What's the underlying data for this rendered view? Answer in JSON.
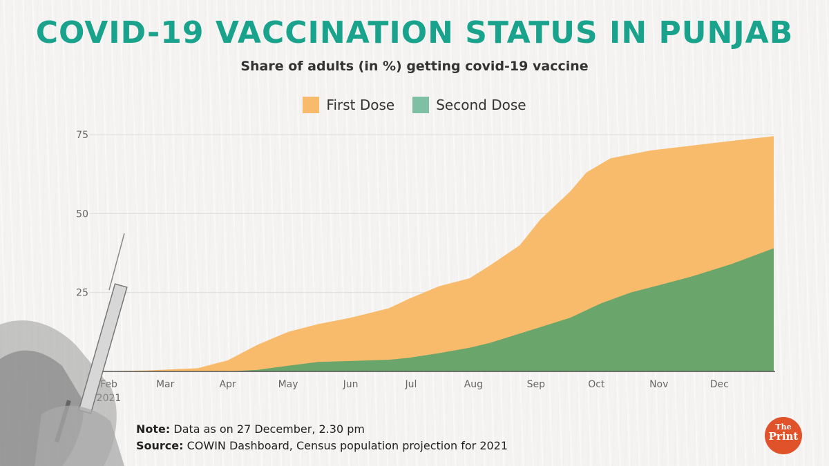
{
  "title": "COVID-19 VACCINATION STATUS IN PUNJAB",
  "subtitle": "Share of adults (in %) getting covid-19 vaccine",
  "note_label": "Note:",
  "note_text": "Data as on 27 December, 2.30 pm",
  "source_label": "Source:",
  "source_text": "COWIN Dashboard, Census population projection for 2021",
  "logo": {
    "top": "The",
    "bottom": "Print"
  },
  "colors": {
    "first": "#f8bb6c",
    "second": "#6aa56b",
    "title": "#1aa38c",
    "logo": "#e0522a"
  },
  "chart_data": {
    "type": "area",
    "ylim": [
      0,
      75
    ],
    "yticks": [
      25,
      50,
      75
    ],
    "xticks": [
      {
        "label": "Feb",
        "sub": "2021",
        "x": 1
      },
      {
        "label": "Mar",
        "x": 29
      },
      {
        "label": "Apr",
        "x": 60
      },
      {
        "label": "May",
        "x": 90
      },
      {
        "label": "Jun",
        "x": 121
      },
      {
        "label": "Jul",
        "x": 151
      },
      {
        "label": "Aug",
        "x": 182
      },
      {
        "label": "Sep",
        "x": 213
      },
      {
        "label": "Oct",
        "x": 243
      },
      {
        "label": "Nov",
        "x": 274
      },
      {
        "label": "Dec",
        "x": 304
      }
    ],
    "xlim": [
      -5,
      331
    ],
    "series": [
      {
        "name": "First Dose",
        "x": [
          -5,
          20,
          45,
          60,
          75,
          90,
          105,
          121,
          140,
          150,
          165,
          180,
          190,
          205,
          215,
          230,
          238,
          250,
          270,
          290,
          310,
          331
        ],
        "values": [
          0,
          0.3,
          1.0,
          3.5,
          8.5,
          12.5,
          15.0,
          17.0,
          20.0,
          23.0,
          27.0,
          29.5,
          33.5,
          40.0,
          48.0,
          57.0,
          63.0,
          67.5,
          70.0,
          71.5,
          73.0,
          74.5
        ]
      },
      {
        "name": "Second Dose",
        "x": [
          -5,
          60,
          75,
          90,
          105,
          121,
          140,
          150,
          165,
          180,
          190,
          205,
          215,
          230,
          245,
          260,
          274,
          290,
          310,
          331
        ],
        "values": [
          0,
          0,
          0.5,
          1.8,
          3.0,
          3.3,
          3.7,
          4.3,
          5.8,
          7.5,
          9.0,
          12.0,
          14.0,
          17.0,
          21.5,
          25.0,
          27.3,
          30.0,
          34.0,
          39.0
        ]
      }
    ]
  }
}
